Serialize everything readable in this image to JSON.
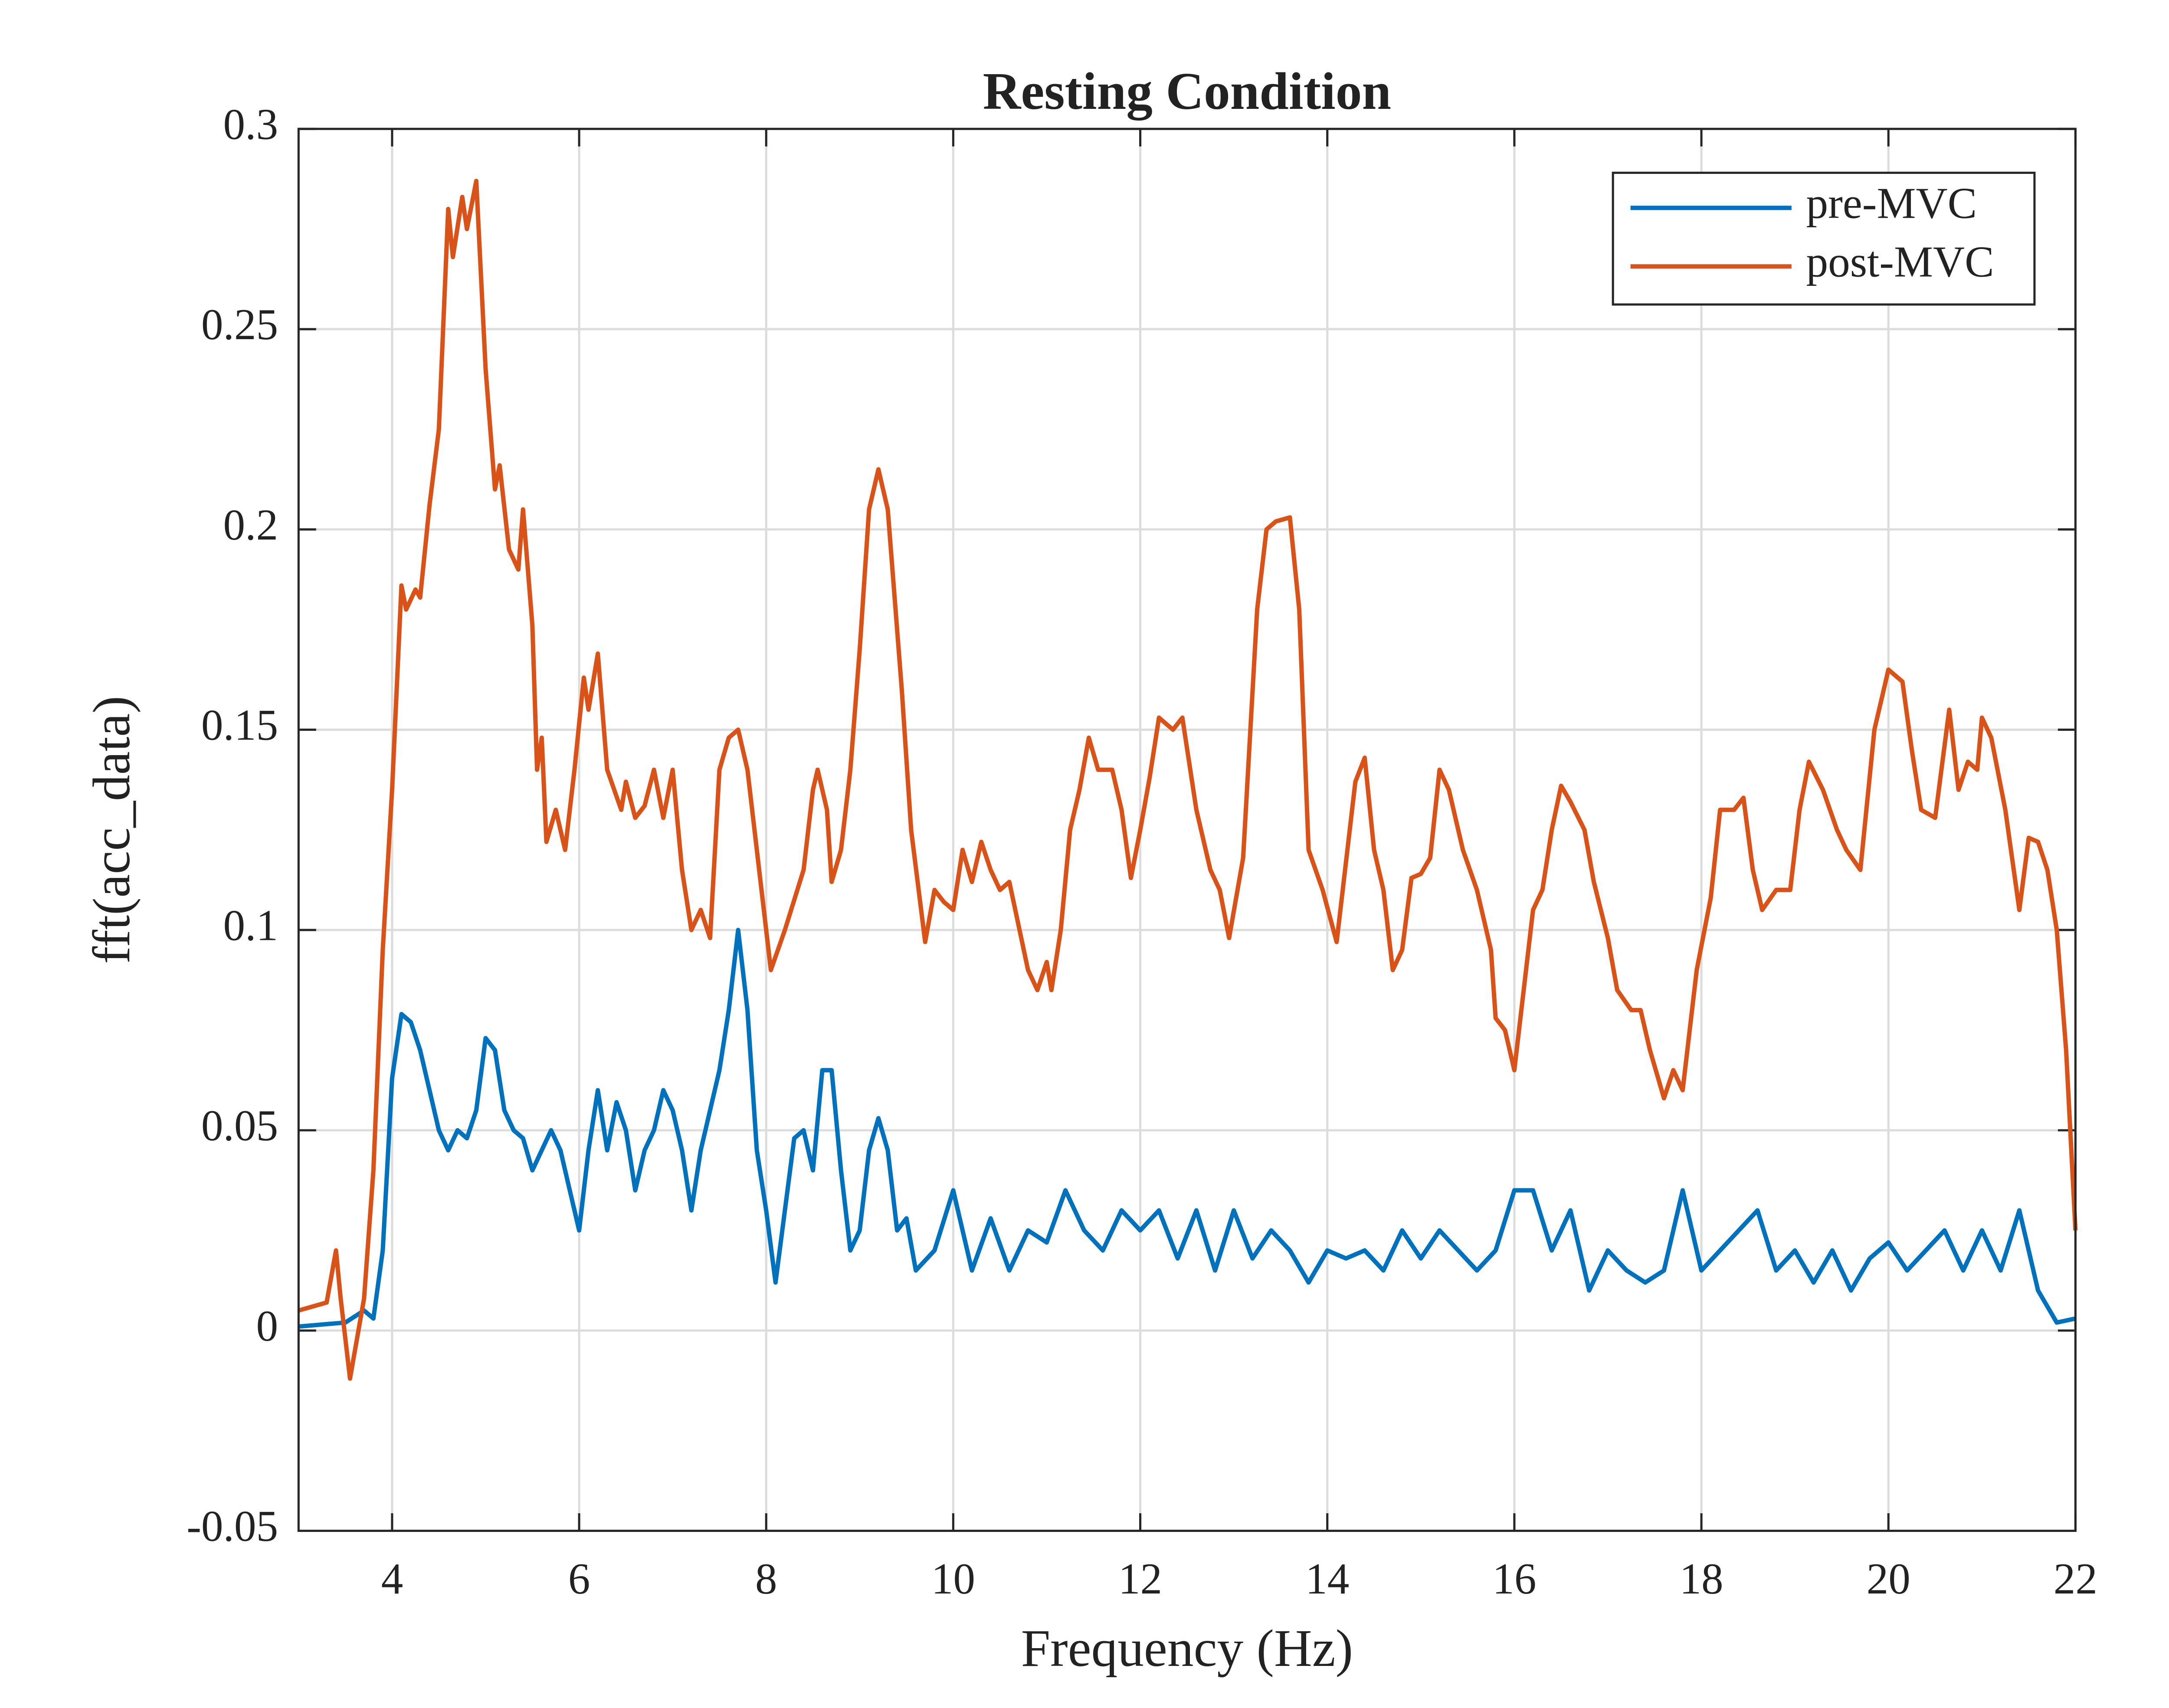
{
  "chart_data": {
    "type": "line",
    "title": "Resting Condition",
    "xlabel": "Frequency (Hz)",
    "ylabel": "fft(acc_data)",
    "xlim": [
      3,
      22
    ],
    "xticks": [
      4,
      6,
      8,
      10,
      12,
      14,
      16,
      18,
      20,
      22
    ],
    "ylim": [
      -0.05,
      0.3
    ],
    "yticks": [
      -0.05,
      0,
      0.05,
      0.1,
      0.15,
      0.2,
      0.25,
      0.3
    ],
    "grid": true,
    "legend": "upper right",
    "series": [
      {
        "name": "pre-MVC",
        "color": "#0072bd",
        "x": [
          3.0,
          3.5,
          3.7,
          3.8,
          3.9,
          4.0,
          4.1,
          4.2,
          4.3,
          4.4,
          4.5,
          4.6,
          4.7,
          4.8,
          4.9,
          5.0,
          5.1,
          5.2,
          5.3,
          5.4,
          5.5,
          5.6,
          5.7,
          5.8,
          5.9,
          6.0,
          6.1,
          6.2,
          6.3,
          6.4,
          6.5,
          6.6,
          6.7,
          6.8,
          6.9,
          7.0,
          7.1,
          7.2,
          7.3,
          7.4,
          7.5,
          7.6,
          7.7,
          7.8,
          7.9,
          8.0,
          8.1,
          8.2,
          8.3,
          8.4,
          8.5,
          8.6,
          8.7,
          8.8,
          8.9,
          9.0,
          9.1,
          9.2,
          9.3,
          9.4,
          9.5,
          9.6,
          9.8,
          10.0,
          10.1,
          10.2,
          10.4,
          10.6,
          10.8,
          11.0,
          11.2,
          11.4,
          11.6,
          11.8,
          12.0,
          12.2,
          12.4,
          12.6,
          12.8,
          13.0,
          13.2,
          13.4,
          13.6,
          13.8,
          14.0,
          14.2,
          14.4,
          14.6,
          14.8,
          15.0,
          15.2,
          15.4,
          15.6,
          15.8,
          16.0,
          16.2,
          16.4,
          16.6,
          16.8,
          17.0,
          17.2,
          17.4,
          17.6,
          17.8,
          18.0,
          18.2,
          18.4,
          18.6,
          18.8,
          19.0,
          19.2,
          19.4,
          19.6,
          19.8,
          20.0,
          20.2,
          20.4,
          20.6,
          20.8,
          21.0,
          21.2,
          21.4,
          21.6,
          21.8,
          22.0
        ],
        "values": [
          0.001,
          0.002,
          0.005,
          0.003,
          0.02,
          0.063,
          0.079,
          0.077,
          0.07,
          0.06,
          0.05,
          0.045,
          0.05,
          0.048,
          0.055,
          0.073,
          0.07,
          0.055,
          0.05,
          0.048,
          0.04,
          0.045,
          0.05,
          0.045,
          0.035,
          0.025,
          0.045,
          0.06,
          0.045,
          0.057,
          0.05,
          0.035,
          0.045,
          0.05,
          0.06,
          0.055,
          0.045,
          0.03,
          0.045,
          0.055,
          0.065,
          0.08,
          0.1,
          0.08,
          0.045,
          0.03,
          0.012,
          0.03,
          0.048,
          0.05,
          0.04,
          0.065,
          0.065,
          0.04,
          0.02,
          0.025,
          0.045,
          0.053,
          0.045,
          0.025,
          0.028,
          0.015,
          0.02,
          0.035,
          0.025,
          0.015,
          0.028,
          0.015,
          0.025,
          0.022,
          0.035,
          0.025,
          0.02,
          0.03,
          0.025,
          0.03,
          0.018,
          0.03,
          0.015,
          0.03,
          0.018,
          0.025,
          0.02,
          0.012,
          0.02,
          0.018,
          0.02,
          0.015,
          0.025,
          0.018,
          0.025,
          0.02,
          0.015,
          0.02,
          0.035,
          0.035,
          0.02,
          0.03,
          0.01,
          0.02,
          0.015,
          0.012,
          0.015,
          0.035,
          0.015,
          0.02,
          0.025,
          0.03,
          0.015,
          0.02,
          0.012,
          0.02,
          0.01,
          0.018,
          0.022,
          0.015,
          0.02,
          0.025,
          0.015,
          0.025,
          0.015,
          0.03,
          0.01,
          0.002,
          0.003
        ]
      },
      {
        "name": "post-MVC",
        "color": "#d95319",
        "x": [
          3.0,
          3.3,
          3.4,
          3.45,
          3.55,
          3.7,
          3.8,
          3.9,
          4.0,
          4.1,
          4.15,
          4.25,
          4.3,
          4.4,
          4.5,
          4.6,
          4.65,
          4.75,
          4.8,
          4.9,
          5.0,
          5.1,
          5.15,
          5.25,
          5.35,
          5.4,
          5.5,
          5.55,
          5.6,
          5.65,
          5.75,
          5.85,
          5.95,
          6.05,
          6.1,
          6.2,
          6.3,
          6.45,
          6.5,
          6.6,
          6.7,
          6.8,
          6.9,
          7.0,
          7.1,
          7.2,
          7.3,
          7.4,
          7.5,
          7.6,
          7.7,
          7.8,
          7.9,
          8.05,
          8.2,
          8.4,
          8.5,
          8.55,
          8.65,
          8.7,
          8.8,
          8.9,
          9.0,
          9.1,
          9.2,
          9.3,
          9.45,
          9.55,
          9.7,
          9.8,
          9.9,
          10.0,
          10.1,
          10.2,
          10.3,
          10.4,
          10.5,
          10.6,
          10.8,
          10.9,
          11.0,
          11.05,
          11.15,
          11.25,
          11.35,
          11.45,
          11.55,
          11.7,
          11.8,
          11.9,
          12.0,
          12.1,
          12.2,
          12.35,
          12.45,
          12.6,
          12.75,
          12.85,
          12.95,
          13.1,
          13.25,
          13.35,
          13.45,
          13.6,
          13.7,
          13.8,
          13.95,
          14.1,
          14.3,
          14.4,
          14.5,
          14.6,
          14.7,
          14.8,
          14.9,
          15.0,
          15.1,
          15.2,
          15.3,
          15.45,
          15.6,
          15.75,
          15.8,
          15.9,
          16.0,
          16.1,
          16.2,
          16.3,
          16.4,
          16.5,
          16.6,
          16.75,
          16.85,
          17.0,
          17.1,
          17.25,
          17.35,
          17.45,
          17.6,
          17.7,
          17.8,
          17.95,
          18.1,
          18.2,
          18.35,
          18.45,
          18.55,
          18.65,
          18.8,
          18.95,
          19.05,
          19.15,
          19.3,
          19.45,
          19.55,
          19.7,
          19.85,
          19.95,
          20.0,
          20.15,
          20.25,
          20.35,
          20.5,
          20.65,
          20.75,
          20.85,
          20.95,
          21.0,
          21.1,
          21.25,
          21.4,
          21.5,
          21.6,
          21.7,
          21.8,
          21.9,
          22.0
        ],
        "values": [
          0.005,
          0.007,
          0.02,
          0.008,
          -0.012,
          0.008,
          0.04,
          0.095,
          0.135,
          0.186,
          0.18,
          0.185,
          0.183,
          0.206,
          0.225,
          0.28,
          0.268,
          0.283,
          0.275,
          0.287,
          0.24,
          0.21,
          0.216,
          0.195,
          0.19,
          0.205,
          0.176,
          0.14,
          0.148,
          0.122,
          0.13,
          0.12,
          0.14,
          0.163,
          0.155,
          0.169,
          0.14,
          0.13,
          0.137,
          0.128,
          0.131,
          0.14,
          0.128,
          0.14,
          0.115,
          0.1,
          0.105,
          0.098,
          0.14,
          0.148,
          0.15,
          0.14,
          0.12,
          0.09,
          0.1,
          0.115,
          0.135,
          0.14,
          0.13,
          0.112,
          0.12,
          0.14,
          0.17,
          0.205,
          0.215,
          0.205,
          0.16,
          0.125,
          0.097,
          0.11,
          0.107,
          0.105,
          0.12,
          0.112,
          0.122,
          0.115,
          0.11,
          0.112,
          0.09,
          0.085,
          0.092,
          0.085,
          0.1,
          0.125,
          0.135,
          0.148,
          0.14,
          0.14,
          0.13,
          0.113,
          0.125,
          0.138,
          0.153,
          0.15,
          0.153,
          0.13,
          0.115,
          0.11,
          0.098,
          0.118,
          0.18,
          0.2,
          0.202,
          0.203,
          0.18,
          0.12,
          0.11,
          0.097,
          0.137,
          0.143,
          0.12,
          0.11,
          0.09,
          0.095,
          0.113,
          0.114,
          0.118,
          0.14,
          0.135,
          0.12,
          0.11,
          0.095,
          0.078,
          0.075,
          0.065,
          0.085,
          0.105,
          0.11,
          0.125,
          0.136,
          0.132,
          0.125,
          0.112,
          0.098,
          0.085,
          0.08,
          0.08,
          0.07,
          0.058,
          0.065,
          0.06,
          0.09,
          0.108,
          0.13,
          0.13,
          0.133,
          0.115,
          0.105,
          0.11,
          0.11,
          0.13,
          0.142,
          0.135,
          0.125,
          0.12,
          0.115,
          0.15,
          0.16,
          0.165,
          0.162,
          0.145,
          0.13,
          0.128,
          0.155,
          0.135,
          0.142,
          0.14,
          0.153,
          0.148,
          0.13,
          0.105,
          0.123,
          0.122,
          0.115,
          0.1,
          0.07,
          0.025
        ]
      }
    ]
  }
}
